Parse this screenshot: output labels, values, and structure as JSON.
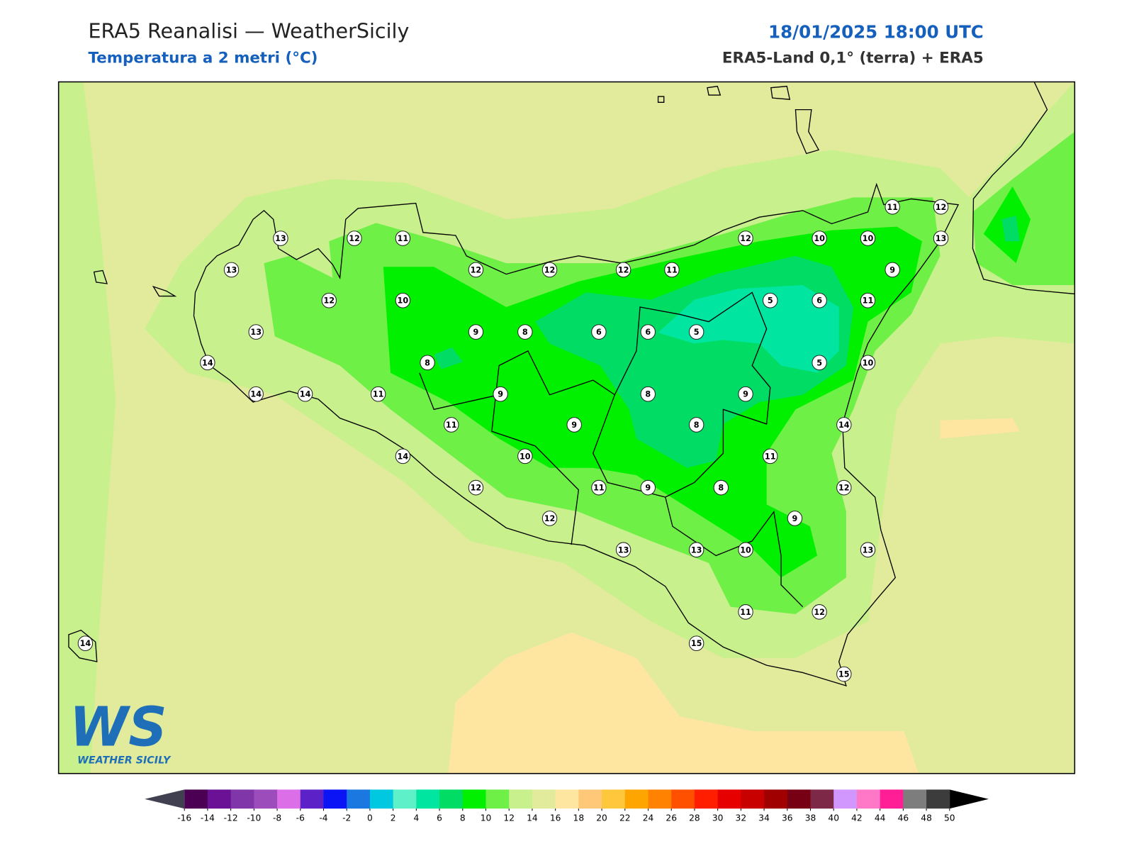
{
  "header": {
    "title": "ERA5 Reanalisi — WeatherSicily",
    "subtitle": "Temperatura a 2 metri (°C)",
    "datetime": "18/01/2025 18:00 UTC",
    "source": "ERA5-Land 0,1° (terra) + ERA5"
  },
  "map": {
    "stations": [
      13,
      12,
      11,
      13,
      12,
      12,
      12,
      11,
      12,
      10,
      13,
      9,
      8,
      6,
      6,
      5,
      5,
      6,
      11,
      9,
      12,
      10,
      10,
      13,
      11,
      12,
      14,
      8,
      5,
      10,
      14,
      14,
      11,
      9,
      8,
      9,
      11,
      9,
      8,
      14,
      14,
      10,
      11,
      12,
      11,
      9,
      8,
      12,
      12,
      9,
      13,
      13,
      10,
      13,
      11,
      12,
      15,
      15,
      14
    ]
  },
  "colorbar": {
    "ticks": [
      -16,
      -14,
      -12,
      -10,
      -8,
      -6,
      -4,
      -2,
      0,
      2,
      4,
      6,
      8,
      10,
      12,
      14,
      16,
      18,
      20,
      22,
      24,
      26,
      28,
      30,
      32,
      34,
      36,
      38,
      40,
      42,
      44,
      46,
      48,
      50
    ],
    "colors": [
      "#4b0054",
      "#6a1196",
      "#8036a8",
      "#9c4dbb",
      "#dc6ee8",
      "#5c22c8",
      "#0a14f5",
      "#1a78e0",
      "#00c8e0",
      "#5ef0c8",
      "#00e6a0",
      "#00dc64",
      "#00f000",
      "#6ef046",
      "#c8f08c",
      "#e1eb9b",
      "#ffe6a0",
      "#ffc878",
      "#ffc83c",
      "#ffa500",
      "#ff8200",
      "#ff5000",
      "#ff1e00",
      "#e60000",
      "#c80000",
      "#a00000",
      "#780014",
      "#7d2846",
      "#d296ff",
      "#ff78c8",
      "#ff1e96",
      "#7d7d7d",
      "#3c3c3c"
    ],
    "under_color": "#404050",
    "over_color": "#000000"
  },
  "logo": {
    "mark": "WS",
    "name": "WEATHER SICILY"
  }
}
